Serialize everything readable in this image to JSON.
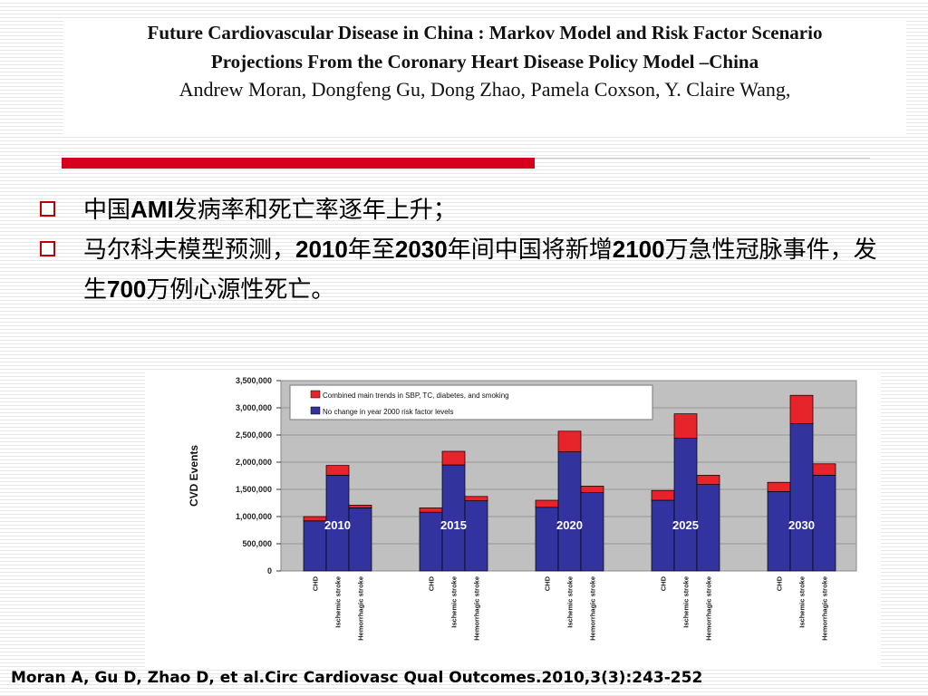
{
  "header": {
    "title_line1": "Future Cardiovascular Disease in China : Markov Model and Risk Factor Scenario",
    "title_line2": "Projections From the Coronary Heart Disease Policy Model –China",
    "authors": "Andrew Moran, Dongfeng Gu, Dong Zhao, Pamela Coxson, Y. Claire Wang,"
  },
  "bullets": [
    {
      "parts": [
        {
          "text": "中国",
          "bold": false
        },
        {
          "text": "AMI",
          "bold": true
        },
        {
          "text": "发病率和死亡率逐年上升；",
          "bold": false
        }
      ]
    },
    {
      "parts": [
        {
          "text": "马尔科夫模型预测，",
          "bold": false
        },
        {
          "text": "2010",
          "bold": true
        },
        {
          "text": "年至",
          "bold": false
        },
        {
          "text": "2030",
          "bold": true
        },
        {
          "text": "年间中国将新增",
          "bold": false
        },
        {
          "text": "2100",
          "bold": true
        },
        {
          "text": "万急性冠脉事件，发生",
          "bold": false
        },
        {
          "text": "700",
          "bold": true
        },
        {
          "text": "万例心源性死亡。",
          "bold": false
        }
      ]
    }
  ],
  "colors": {
    "accent_red": "#d7001f",
    "bar_blue": "#3333a0",
    "bar_red": "#e8242a",
    "plot_bg": "#c0c0c0",
    "bullet_box": "#c00000"
  },
  "chart_data": {
    "type": "bar",
    "stacked": true,
    "ylabel": "CVD Events",
    "xlabel": "",
    "ylim": [
      0,
      3500000
    ],
    "yticks": [
      "0",
      "500,000",
      "1,000,000",
      "1,500,000",
      "2,000,000",
      "2,500,000",
      "3,000,000",
      "3,500,000"
    ],
    "grid": true,
    "legend_position": "top",
    "groups": [
      "2010",
      "2015",
      "2020",
      "2025",
      "2030"
    ],
    "categories": [
      "CHD",
      "Ischemic stroke",
      "Hemorrhagic stroke"
    ],
    "series": [
      {
        "name": "No change in year 2000 risk factor levels",
        "values": [
          [
            920000,
            1760000,
            1160000
          ],
          [
            1080000,
            1950000,
            1290000
          ],
          [
            1170000,
            2190000,
            1440000
          ],
          [
            1300000,
            2440000,
            1590000
          ],
          [
            1460000,
            2710000,
            1760000
          ]
        ]
      },
      {
        "name": "Combined main trends in SBP, TC, diabetes, and smoking",
        "values": [
          [
            80000,
            180000,
            50000
          ],
          [
            80000,
            250000,
            80000
          ],
          [
            130000,
            380000,
            120000
          ],
          [
            180000,
            450000,
            170000
          ],
          [
            170000,
            520000,
            210000
          ]
        ]
      }
    ]
  },
  "citation": "Moran A, Gu D, Zhao D, et al.Circ Cardiovasc Qual Outcomes.2010,3(3):243-252"
}
